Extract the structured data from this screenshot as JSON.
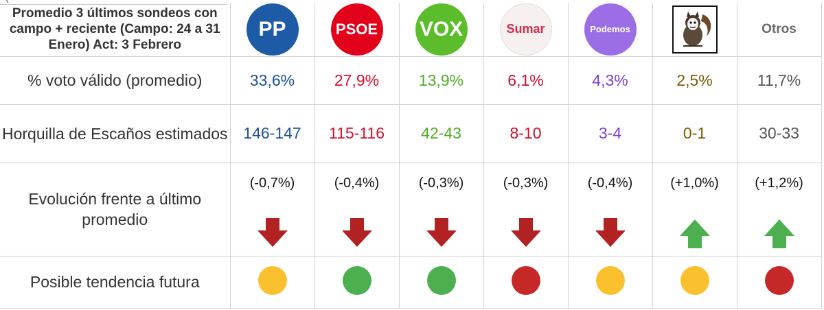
{
  "header": {
    "title": "Promedio 3 últimos sondeos con campo + reciente (Campo: 24 a 31 Enero) Act: 3 Febrero",
    "cutoff_text": "(",
    "otros_label": "Otros"
  },
  "parties": [
    {
      "logo_text": "PP",
      "logo_bg": "#1d5ba6",
      "logo_fg": "#ffffff",
      "color": "#1d4f96",
      "icon": "pp-logo-icon"
    },
    {
      "logo_text": "PSOE",
      "logo_bg": "#e3001b",
      "logo_fg": "#ffffff",
      "color": "#d8102a",
      "icon": "psoe-logo-icon"
    },
    {
      "logo_text": "VOX",
      "logo_bg": "#5bbd2b",
      "logo_fg": "#ffffff",
      "color": "#4fae23",
      "icon": "vox-logo-icon"
    },
    {
      "logo_text": "Sumar",
      "logo_bg": "#f6f0f0",
      "logo_fg": "#d8294a",
      "color": "#c8102e",
      "icon": "sumar-logo-icon"
    },
    {
      "logo_text": "Podemos",
      "logo_bg": "#9b6ee6",
      "logo_fg": "#ffffff",
      "color": "#7a3fd6",
      "icon": "podemos-logo-icon"
    },
    {
      "logo_text": "",
      "logo_bg": "#ffffff",
      "logo_fg": "#333333",
      "color": "#7a5a00",
      "icon": "squirrel-logo-icon"
    },
    {
      "logo_text": "",
      "logo_bg": "",
      "logo_fg": "",
      "color": "#555555",
      "icon": ""
    }
  ],
  "rows": {
    "vote": {
      "label": "% voto válido (promedio)",
      "values": [
        "33,6%",
        "27,9%",
        "13,9%",
        "6,1%",
        "4,3%",
        "2,5%",
        "11,7%"
      ]
    },
    "seats": {
      "label": "Horquilla de Escaños estimados",
      "values": [
        "146-147",
        "115-116",
        "42-43",
        "8-10",
        "3-4",
        "0-1",
        "30-33"
      ]
    },
    "evolution": {
      "label": "Evolución frente a último promedio",
      "values": [
        "(-0,7%)",
        "(-0,4%)",
        "(-0,3%)",
        "(-0,3%)",
        "(-0,4%)",
        "(+1,0%)",
        "(+1,2%)"
      ],
      "directions": [
        "down",
        "down",
        "down",
        "down",
        "down",
        "up",
        "up"
      ]
    },
    "trend": {
      "label": "Posible tendencia futura",
      "colors": [
        "#fbc02d",
        "#4caf50",
        "#4caf50",
        "#c62828",
        "#fbc02d",
        "#fbc02d",
        "#c62828"
      ]
    }
  },
  "colors": {
    "arrow_down": "#b22222",
    "arrow_up": "#4caf50"
  }
}
